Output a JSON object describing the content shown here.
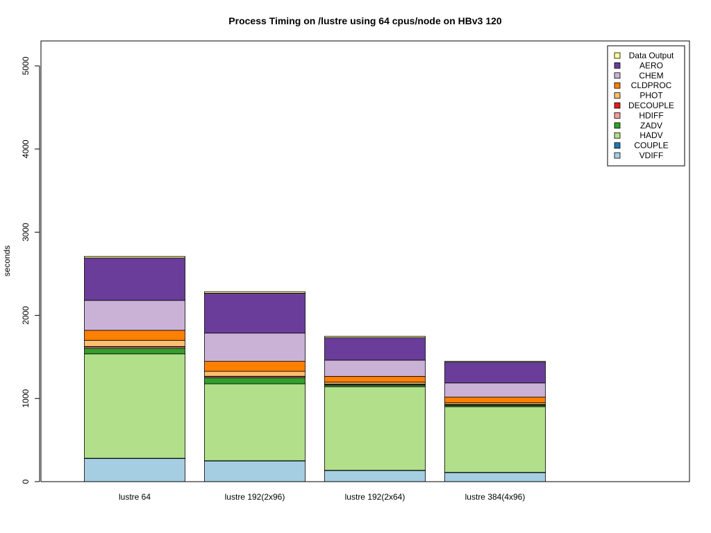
{
  "chart_data": {
    "type": "bar",
    "stacked": true,
    "title": "Process Timing on /lustre using 64 cpus/node on HBv3 120",
    "xlabel": "",
    "ylabel": "seconds",
    "ylim": [
      0,
      5300
    ],
    "yticks": [
      0,
      1000,
      2000,
      3000,
      4000,
      5000
    ],
    "grid": false,
    "legend_position": "top-right",
    "categories": [
      "lustre 64",
      "lustre 192(2x96)",
      "lustre 192(2x64)",
      "lustre 384(4x96)"
    ],
    "series": [
      {
        "name": "VDIFF",
        "color": "#A6CEE3",
        "values": [
          280,
          250,
          135,
          110
        ]
      },
      {
        "name": "COUPLE",
        "color": "#1F78B4",
        "values": [
          2,
          2,
          2,
          2
        ]
      },
      {
        "name": "HADV",
        "color": "#B2DF8A",
        "values": [
          1255,
          925,
          1005,
          790
        ]
      },
      {
        "name": "ZADV",
        "color": "#33A02C",
        "values": [
          65,
          70,
          18,
          15
        ]
      },
      {
        "name": "HDIFF",
        "color": "#FB9A99",
        "values": [
          18,
          15,
          10,
          8
        ]
      },
      {
        "name": "DECOUPLE",
        "color": "#E31A1C",
        "values": [
          5,
          5,
          4,
          4
        ]
      },
      {
        "name": "PHOT",
        "color": "#FDBF6F",
        "values": [
          75,
          60,
          22,
          18
        ]
      },
      {
        "name": "CLDPROC",
        "color": "#FF7F00",
        "values": [
          120,
          120,
          70,
          70
        ]
      },
      {
        "name": "CHEM",
        "color": "#CAB2D6",
        "values": [
          360,
          340,
          195,
          170
        ]
      },
      {
        "name": "AERO",
        "color": "#6A3D9A",
        "values": [
          510,
          480,
          270,
          250
        ]
      },
      {
        "name": "Data Output",
        "color": "#FFFF99",
        "values": [
          20,
          18,
          17,
          10
        ]
      }
    ],
    "legend_order": [
      "Data Output",
      "AERO",
      "CHEM",
      "CLDPROC",
      "PHOT",
      "DECOUPLE",
      "HDIFF",
      "ZADV",
      "HADV",
      "COUPLE",
      "VDIFF"
    ]
  }
}
